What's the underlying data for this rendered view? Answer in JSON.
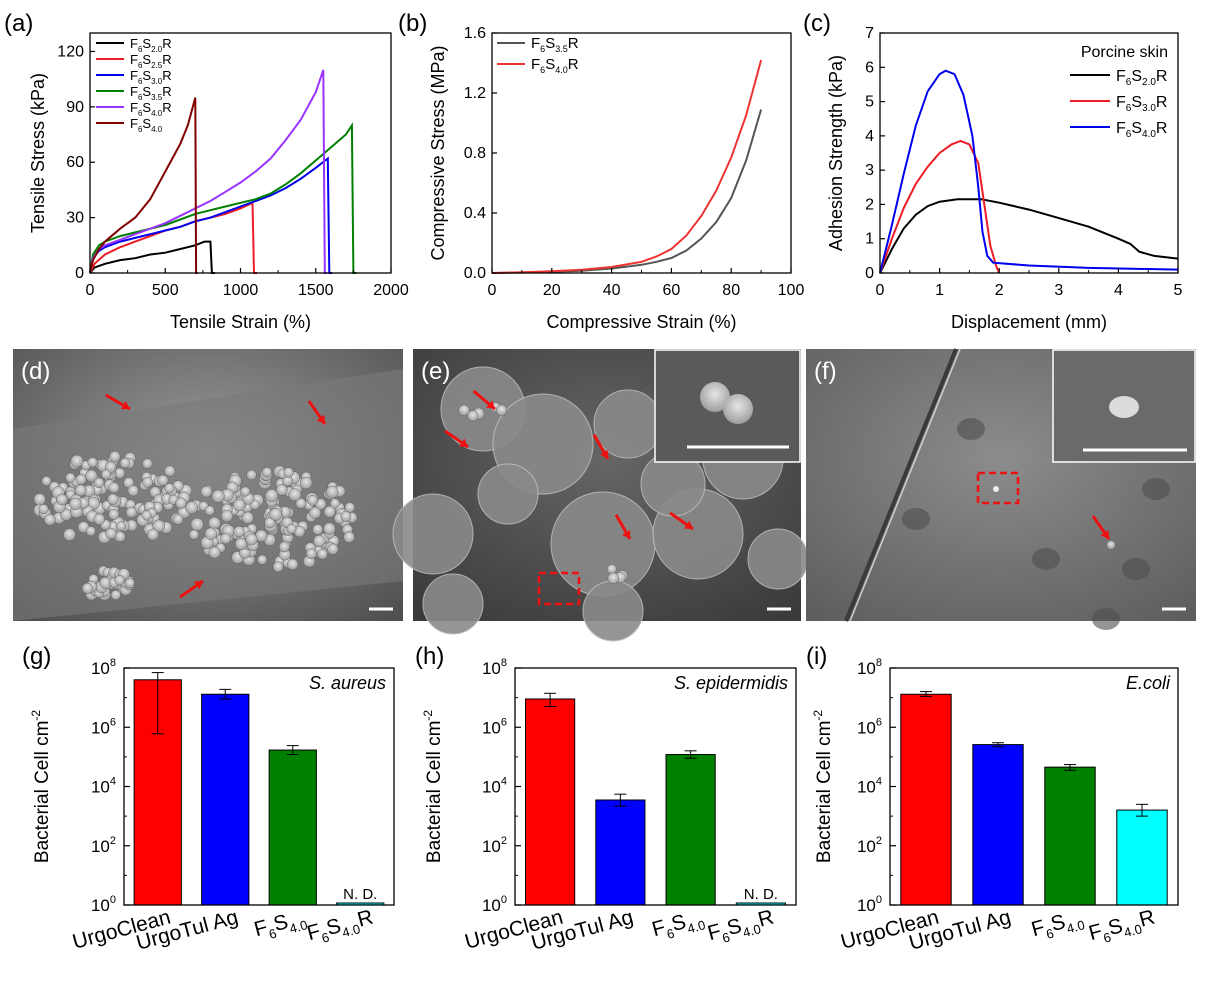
{
  "panels_abc": [
    {
      "letter": "(a)",
      "type": "line",
      "xlabel": "Tensile Strain (%)",
      "ylabel": "Tensile Stress (kPa)",
      "xlim": [
        0,
        2000
      ],
      "ylim": [
        0,
        130
      ],
      "xticks": [
        "0",
        "500",
        "1000",
        "1500",
        "2000"
      ],
      "yticks": [
        "0",
        "30",
        "60",
        "90",
        "120"
      ],
      "legend_position": "top-left",
      "series": [
        {
          "base": "F",
          "s1": "6",
          "mid": "S",
          "s2": "2.0",
          "tail": "R",
          "color": "#000000",
          "points": [
            [
              0,
              0
            ],
            [
              30,
              3
            ],
            [
              100,
              5
            ],
            [
              200,
              7
            ],
            [
              300,
              8
            ],
            [
              400,
              10
            ],
            [
              500,
              11
            ],
            [
              600,
              13
            ],
            [
              700,
              15
            ],
            [
              760,
              17
            ],
            [
              800,
              17
            ],
            [
              810,
              0
            ],
            [
              830,
              0
            ]
          ]
        },
        {
          "base": "F",
          "s1": "6",
          "mid": "S",
          "s2": "2.5",
          "tail": "R",
          "color": "#ee1c25",
          "points": [
            [
              0,
              0
            ],
            [
              30,
              5
            ],
            [
              100,
              10
            ],
            [
              200,
              14
            ],
            [
              300,
              17
            ],
            [
              400,
              20
            ],
            [
              500,
              23
            ],
            [
              600,
              25
            ],
            [
              700,
              28
            ],
            [
              800,
              30
            ],
            [
              900,
              32
            ],
            [
              1000,
              35
            ],
            [
              1080,
              38
            ],
            [
              1090,
              0
            ],
            [
              1110,
              0
            ]
          ]
        },
        {
          "base": "F",
          "s1": "6",
          "mid": "S",
          "s2": "3.0",
          "tail": "R",
          "color": "#0000ee",
          "points": [
            [
              0,
              0
            ],
            [
              20,
              8
            ],
            [
              60,
              12
            ],
            [
              100,
              14
            ],
            [
              200,
              17
            ],
            [
              300,
              19
            ],
            [
              400,
              21
            ],
            [
              500,
              23
            ],
            [
              600,
              25
            ],
            [
              700,
              28
            ],
            [
              800,
              30
            ],
            [
              900,
              33
            ],
            [
              1000,
              36
            ],
            [
              1100,
              39
            ],
            [
              1200,
              42
            ],
            [
              1300,
              46
            ],
            [
              1400,
              51
            ],
            [
              1500,
              57
            ],
            [
              1580,
              62
            ],
            [
              1590,
              0
            ],
            [
              1610,
              0
            ]
          ]
        },
        {
          "base": "F",
          "s1": "6",
          "mid": "S",
          "s2": "3.5",
          "tail": "R",
          "color": "#008000",
          "points": [
            [
              0,
              0
            ],
            [
              20,
              10
            ],
            [
              60,
              15
            ],
            [
              100,
              17
            ],
            [
              200,
              20
            ],
            [
              300,
              22
            ],
            [
              400,
              24
            ],
            [
              500,
              26
            ],
            [
              600,
              29
            ],
            [
              700,
              32
            ],
            [
              800,
              34
            ],
            [
              900,
              36
            ],
            [
              1000,
              38
            ],
            [
              1100,
              40
            ],
            [
              1200,
              43
            ],
            [
              1300,
              48
            ],
            [
              1400,
              54
            ],
            [
              1500,
              61
            ],
            [
              1600,
              68
            ],
            [
              1700,
              75
            ],
            [
              1740,
              80
            ],
            [
              1750,
              0
            ],
            [
              1770,
              0
            ]
          ]
        },
        {
          "base": "F",
          "s1": "6",
          "mid": "S",
          "s2": "4.0",
          "tail": "R",
          "color": "#9933ff",
          "points": [
            [
              0,
              0
            ],
            [
              20,
              8
            ],
            [
              60,
              13
            ],
            [
              100,
              15
            ],
            [
              200,
              18
            ],
            [
              300,
              21
            ],
            [
              400,
              24
            ],
            [
              500,
              27
            ],
            [
              600,
              31
            ],
            [
              700,
              35
            ],
            [
              800,
              39
            ],
            [
              900,
              44
            ],
            [
              1000,
              49
            ],
            [
              1100,
              55
            ],
            [
              1200,
              62
            ],
            [
              1300,
              72
            ],
            [
              1400,
              83
            ],
            [
              1500,
              98
            ],
            [
              1550,
              110
            ],
            [
              1560,
              0
            ],
            [
              1575,
              0
            ]
          ]
        },
        {
          "base": "F",
          "s1": "6",
          "mid": "S",
          "s2": "4.0",
          "tail": "",
          "color": "#800000",
          "points": [
            [
              0,
              0
            ],
            [
              20,
              7
            ],
            [
              60,
              13
            ],
            [
              100,
              17
            ],
            [
              200,
              24
            ],
            [
              300,
              30
            ],
            [
              400,
              40
            ],
            [
              500,
              55
            ],
            [
              600,
              70
            ],
            [
              650,
              80
            ],
            [
              690,
              92
            ],
            [
              700,
              95
            ],
            [
              705,
              0
            ],
            [
              715,
              0
            ]
          ]
        }
      ]
    },
    {
      "letter": "(b)",
      "type": "line",
      "xlabel": "Compressive Strain (%)",
      "ylabel": "Compressive Stress (MPa)",
      "xlim": [
        0,
        100
      ],
      "ylim": [
        0,
        1.6
      ],
      "xticks": [
        "0",
        "20",
        "40",
        "60",
        "80",
        "100"
      ],
      "yticks": [
        "0.0",
        "0.4",
        "0.8",
        "1.2",
        "1.6"
      ],
      "legend_position": "top-left",
      "series": [
        {
          "base": "F",
          "s1": "6",
          "mid": "S",
          "s2": "3.5",
          "tail": "R",
          "color": "#555555",
          "points": [
            [
              0,
              0
            ],
            [
              10,
              0.003
            ],
            [
              20,
              0.008
            ],
            [
              30,
              0.015
            ],
            [
              40,
              0.03
            ],
            [
              50,
              0.055
            ],
            [
              55,
              0.075
            ],
            [
              60,
              0.1
            ],
            [
              65,
              0.15
            ],
            [
              70,
              0.23
            ],
            [
              75,
              0.34
            ],
            [
              80,
              0.5
            ],
            [
              85,
              0.75
            ],
            [
              90,
              1.09
            ]
          ]
        },
        {
          "base": "F",
          "s1": "6",
          "mid": "S",
          "s2": "4.0",
          "tail": "R",
          "color": "#ee3333",
          "points": [
            [
              0,
              0
            ],
            [
              10,
              0.005
            ],
            [
              20,
              0.012
            ],
            [
              30,
              0.022
            ],
            [
              40,
              0.04
            ],
            [
              50,
              0.075
            ],
            [
              55,
              0.11
            ],
            [
              60,
              0.16
            ],
            [
              65,
              0.25
            ],
            [
              70,
              0.38
            ],
            [
              75,
              0.55
            ],
            [
              80,
              0.77
            ],
            [
              85,
              1.05
            ],
            [
              90,
              1.42
            ]
          ]
        }
      ]
    },
    {
      "letter": "(c)",
      "type": "line",
      "xlabel": "Displacement (mm)",
      "ylabel": "Adhesion Strength (kPa)",
      "xlim": [
        0,
        5
      ],
      "ylim": [
        0,
        7
      ],
      "xticks": [
        "0",
        "1",
        "2",
        "3",
        "4",
        "5"
      ],
      "yticks": [
        "0",
        "1",
        "2",
        "3",
        "4",
        "5",
        "6",
        "7"
      ],
      "legend_title": "Porcine skin",
      "legend_position": "top-right",
      "series": [
        {
          "base": "F",
          "s1": "6",
          "mid": "S",
          "s2": "2.0",
          "tail": "R",
          "color": "#000000",
          "points": [
            [
              0,
              0
            ],
            [
              0.2,
              0.7
            ],
            [
              0.4,
              1.3
            ],
            [
              0.6,
              1.7
            ],
            [
              0.8,
              1.95
            ],
            [
              1.0,
              2.08
            ],
            [
              1.3,
              2.15
            ],
            [
              1.7,
              2.15
            ],
            [
              2.0,
              2.05
            ],
            [
              2.5,
              1.85
            ],
            [
              3.0,
              1.6
            ],
            [
              3.5,
              1.35
            ],
            [
              4.0,
              1.0
            ],
            [
              4.2,
              0.85
            ],
            [
              4.35,
              0.62
            ],
            [
              4.6,
              0.5
            ],
            [
              5,
              0.42
            ]
          ]
        },
        {
          "base": "F",
          "s1": "6",
          "mid": "S",
          "s2": "3.0",
          "tail": "R",
          "color": "#ee1c25",
          "points": [
            [
              0,
              0
            ],
            [
              0.2,
              1.0
            ],
            [
              0.4,
              1.9
            ],
            [
              0.6,
              2.6
            ],
            [
              0.8,
              3.1
            ],
            [
              1.0,
              3.5
            ],
            [
              1.2,
              3.75
            ],
            [
              1.35,
              3.85
            ],
            [
              1.5,
              3.75
            ],
            [
              1.65,
              3.2
            ],
            [
              1.75,
              2.0
            ],
            [
              1.85,
              0.8
            ],
            [
              1.95,
              0.2
            ],
            [
              2.0,
              0
            ]
          ]
        },
        {
          "base": "F",
          "s1": "6",
          "mid": "S",
          "s2": "4.0",
          "tail": "R",
          "color": "#0000ee",
          "points": [
            [
              0,
              0
            ],
            [
              0.2,
              1.4
            ],
            [
              0.4,
              2.9
            ],
            [
              0.6,
              4.3
            ],
            [
              0.8,
              5.3
            ],
            [
              1.0,
              5.8
            ],
            [
              1.1,
              5.9
            ],
            [
              1.25,
              5.8
            ],
            [
              1.4,
              5.2
            ],
            [
              1.55,
              4.0
            ],
            [
              1.65,
              2.5
            ],
            [
              1.72,
              1.2
            ],
            [
              1.8,
              0.5
            ],
            [
              1.9,
              0.3
            ],
            [
              2.5,
              0.22
            ],
            [
              3.5,
              0.15
            ],
            [
              5,
              0.1
            ]
          ]
        }
      ]
    }
  ],
  "panels_sem": [
    {
      "letter": "(d)",
      "scale_bar": true
    },
    {
      "letter": "(e)",
      "scale_bar": true
    },
    {
      "letter": "(f)",
      "scale_bar": true
    }
  ],
  "chart_data": [
    {
      "type": "bar",
      "letter": "(g)",
      "title": "S. aureus",
      "ylabel": "Bacterial Cell cm",
      "ylabel_sup": "-2",
      "yscale": "log",
      "ylim": [
        1,
        100000000
      ],
      "ytick_exponents": [
        "0",
        "2",
        "4",
        "6",
        "8"
      ],
      "categories": [
        {
          "base": "UrgoClean",
          "sub": "",
          "tail": ""
        },
        {
          "base": "UrgoTul Ag",
          "sub": "",
          "tail": ""
        },
        {
          "base": "F",
          "sub": "6",
          "mid": "S",
          "sub2": "4.0",
          "tail": ""
        },
        {
          "base": "F",
          "sub": "6",
          "mid": "S",
          "sub2": "4.0",
          "tail": "R"
        }
      ],
      "values": [
        40000000,
        13000000,
        170000,
        1
      ],
      "err_low": [
        600000,
        9000000,
        120000,
        1
      ],
      "err_high": [
        70000000,
        19000000,
        240000,
        1
      ],
      "colors": [
        "#ff0000",
        "#0000ff",
        "#008000",
        "#00ffff"
      ],
      "nd_label": "N. D."
    },
    {
      "type": "bar",
      "letter": "(h)",
      "title": "S. epidermidis",
      "ylabel": "Bacterial Cell cm",
      "ylabel_sup": "-2",
      "yscale": "log",
      "ylim": [
        1,
        100000000
      ],
      "ytick_exponents": [
        "0",
        "2",
        "4",
        "6",
        "8"
      ],
      "categories": [
        {
          "base": "UrgoClean",
          "sub": "",
          "tail": ""
        },
        {
          "base": "UrgoTul Ag",
          "sub": "",
          "tail": ""
        },
        {
          "base": "F",
          "sub": "6",
          "mid": "S",
          "sub2": "4.0",
          "tail": ""
        },
        {
          "base": "F",
          "sub": "6",
          "mid": "S",
          "sub2": "4.0",
          "tail": "R"
        }
      ],
      "values": [
        9000000,
        3500,
        120000,
        1
      ],
      "err_low": [
        5000000,
        2200,
        90000,
        1
      ],
      "err_high": [
        14000000,
        5500,
        160000,
        1
      ],
      "colors": [
        "#ff0000",
        "#0000ff",
        "#008000",
        "#00ffff"
      ],
      "nd_label": "N. D."
    },
    {
      "type": "bar",
      "letter": "(i)",
      "title": "E.coli",
      "ylabel": "Bacterial Cell cm",
      "ylabel_sup": "-2",
      "yscale": "log",
      "ylim": [
        1,
        100000000
      ],
      "ytick_exponents": [
        "0",
        "2",
        "4",
        "6",
        "8"
      ],
      "categories": [
        {
          "base": "UrgoClean",
          "sub": "",
          "tail": ""
        },
        {
          "base": "UrgoTul Ag",
          "sub": "",
          "tail": ""
        },
        {
          "base": "F",
          "sub": "6",
          "mid": "S",
          "sub2": "4.0",
          "tail": ""
        },
        {
          "base": "F",
          "sub": "6",
          "mid": "S",
          "sub2": "4.0",
          "tail": "R"
        }
      ],
      "values": [
        13000000,
        260000,
        45000,
        1600
      ],
      "err_low": [
        11000000,
        220000,
        35000,
        1000
      ],
      "err_high": [
        16000000,
        300000,
        55000,
        2500
      ],
      "colors": [
        "#ff0000",
        "#0000ff",
        "#008000",
        "#00ffff"
      ],
      "nd_label": ""
    }
  ]
}
